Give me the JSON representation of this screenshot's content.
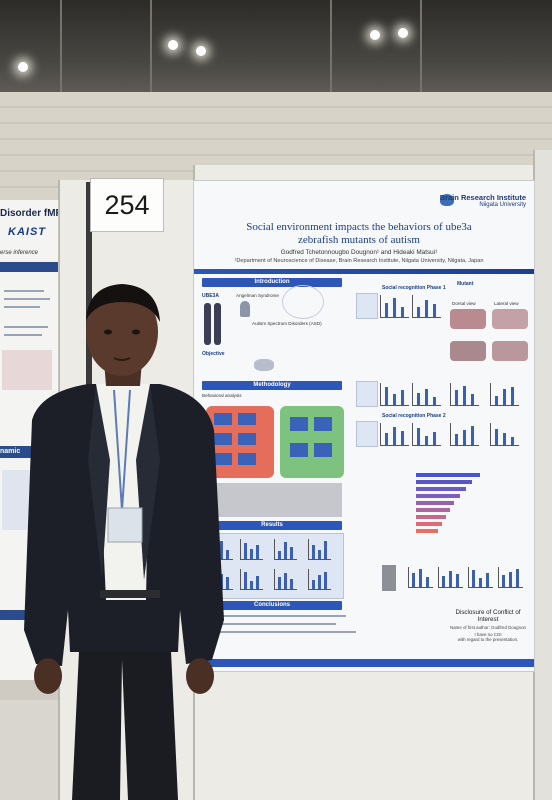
{
  "booth_number": "254",
  "left_poster": {
    "title_fragment": "Disorder fMRI",
    "logo_text": "KAIST",
    "subtitle_fragment": "erse inference",
    "section_fragment": "namic"
  },
  "poster": {
    "institute_name": "Brain Research Institute",
    "university": "Niigata University",
    "title_line1": "Social environment impacts the behaviors of ube3a",
    "title_line2": "zebrafish mutants of autism",
    "authors": "Godfred Tchetonnougbo Dougnon¹ and Hideaki Matsui¹",
    "affiliation": "¹Department of Neuroscience of Disease, Brain Research Institute, Niigata University, Niigata, Japan",
    "sections": {
      "introduction": "Introduction",
      "methodology": "Methodology",
      "results": "Results",
      "conclusions": "Conclusions"
    },
    "intro": {
      "gene_label": "UBE3A",
      "syndrome_label": "Angelman Syndrome",
      "asd_label": "Autism Spectrum Disorders (ASD)",
      "objective_label": "Objective"
    },
    "method": {
      "subheading": "Behavioral analysis"
    },
    "results_panels": {
      "phase1": "Social recognition Phase 1",
      "phase2": "Social recognition Phase 2",
      "mutant_label": "Mutant",
      "dorsal_view": "Dorsal view",
      "lateral_view": "Lateral view"
    },
    "disclosure": {
      "heading_line1": "Disclosure of Conflict of",
      "heading_line2": "Interest",
      "author_label": "Name of first author: Godfred Dougnon",
      "coi_line1": "I have no COI",
      "coi_line2": "with regard to the presentation."
    }
  },
  "colors": {
    "poster_accent": "#2c56b8",
    "heatmap_red": "#e46d5c",
    "heatmap_green": "#7dc27f",
    "jacket": "#1c1f27",
    "shirt": "#f2f2ee"
  }
}
